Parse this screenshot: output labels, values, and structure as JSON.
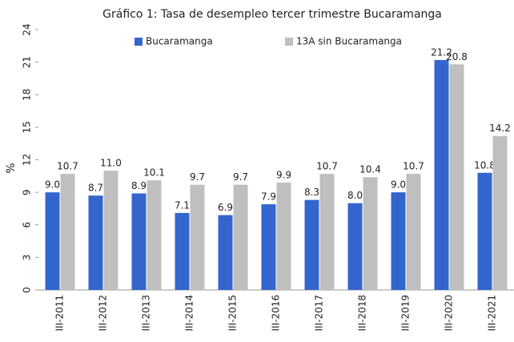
{
  "chart_data": {
    "type": "bar",
    "title": "Gráfico 1: Tasa de desempleo tercer trimestre Bucaramanga",
    "y_label": "%",
    "categories": [
      "III-2011",
      "III-2012",
      "III-2013",
      "III-2014",
      "III-2015",
      "III-2016",
      "III-2017",
      "III-2018",
      "III-2019",
      "III-2020",
      "III-2021"
    ],
    "series": [
      {
        "name": "Bucaramanga",
        "color": "#3366cc",
        "values": [
          9.0,
          8.7,
          8.9,
          7.1,
          6.9,
          7.9,
          8.3,
          8.0,
          9.0,
          21.2,
          10.8
        ],
        "value_labels": [
          "9.0",
          "8.7",
          "8.9",
          "7.1",
          "6.9",
          "7.9",
          "8.3",
          "8.0",
          "9.0",
          "21.2",
          "10.8"
        ]
      },
      {
        "name": "13A sin Bucaramanga",
        "color": "#bfbfbf",
        "values": [
          10.7,
          11.0,
          10.1,
          9.7,
          9.7,
          9.9,
          10.7,
          10.4,
          10.7,
          20.8,
          14.2
        ],
        "value_labels": [
          "10.7",
          "11.0",
          "10.1",
          "9.7",
          "9.7",
          "9.9",
          "10.7",
          "10.4",
          "10.7",
          "20.8",
          "14.2"
        ]
      }
    ],
    "ylim": [
      0,
      24
    ],
    "yticks": [
      0,
      3,
      6,
      9,
      12,
      15,
      18,
      21,
      24
    ],
    "grid": false
  }
}
